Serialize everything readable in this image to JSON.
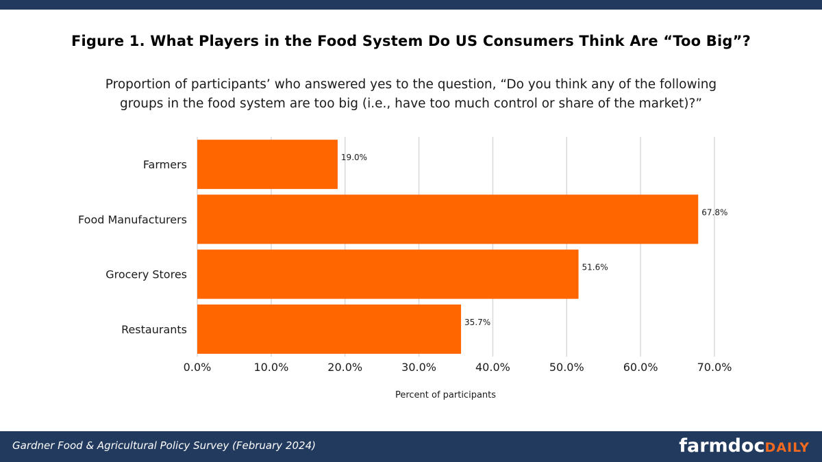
{
  "header": {
    "title": "Figure 1. What Players in the Food System Do US Consumers Think Are “Too Big”?",
    "subtitle_line1": "Proportion of participants’ who answered yes to the question, “Do you think any of the following",
    "subtitle_line2": "groups in the food system are too big (i.e., have too much control or share of the market)?”"
  },
  "chart_data": {
    "type": "bar",
    "orientation": "horizontal",
    "categories": [
      "Farmers",
      "Food Manufacturers",
      "Grocery Stores",
      "Restaurants"
    ],
    "values": [
      19.0,
      67.8,
      51.6,
      35.7
    ],
    "data_labels": [
      "19.0%",
      "67.8%",
      "51.6%",
      "35.7%"
    ],
    "xlabel": "Percent of participants",
    "ylabel": "",
    "xlim": [
      0,
      70
    ],
    "x_ticks": [
      0,
      10,
      20,
      30,
      40,
      50,
      60,
      70
    ],
    "x_tick_labels": [
      "0.0%",
      "10.0%",
      "20.0%",
      "30.0%",
      "40.0%",
      "50.0%",
      "60.0%",
      "70.0%"
    ],
    "grid": "vertical",
    "legend": "none",
    "bar_color": "#ff6600",
    "grid_color": "#d9d9d9"
  },
  "footer": {
    "source": "Gardner Food & Agricultural Policy Survey (February 2024)",
    "logo_main": "farmdoc",
    "logo_accent": "DAILY",
    "background_color": "#223a5e",
    "logo_accent_color": "#f26a1f"
  }
}
